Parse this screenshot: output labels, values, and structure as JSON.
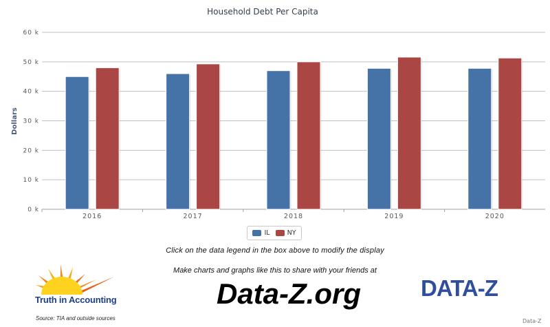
{
  "chart_data": {
    "type": "bar",
    "title": "Household Debt Per Capita",
    "ylabel": "Dollars",
    "xlabel": "",
    "categories": [
      "2016",
      "2017",
      "2018",
      "2019",
      "2020"
    ],
    "series": [
      {
        "name": "IL",
        "color": "#4572a7",
        "values": [
          45000,
          46000,
          47000,
          47800,
          47800
        ]
      },
      {
        "name": "NY",
        "color": "#aa4643",
        "values": [
          48000,
          49300,
          50000,
          51600,
          51300
        ]
      }
    ],
    "ylim": [
      0,
      60000
    ],
    "yticks": [
      "0 k",
      "10 k",
      "20 k",
      "30 k",
      "40 k",
      "50 k",
      "60 k"
    ],
    "grid": true,
    "legend": "bottom-center"
  },
  "hint_text": "Click on the data legend in the box above to modify the display",
  "promo_text": "Make charts and graphs like this to share with your friends at",
  "site_name": "Data-Z.org",
  "tia_logo_text": "Truth in Accounting",
  "dataz_logo_text": "DATA-Z",
  "source_text": "Source: TIA and outside sources",
  "credit_text": "Data-Z"
}
